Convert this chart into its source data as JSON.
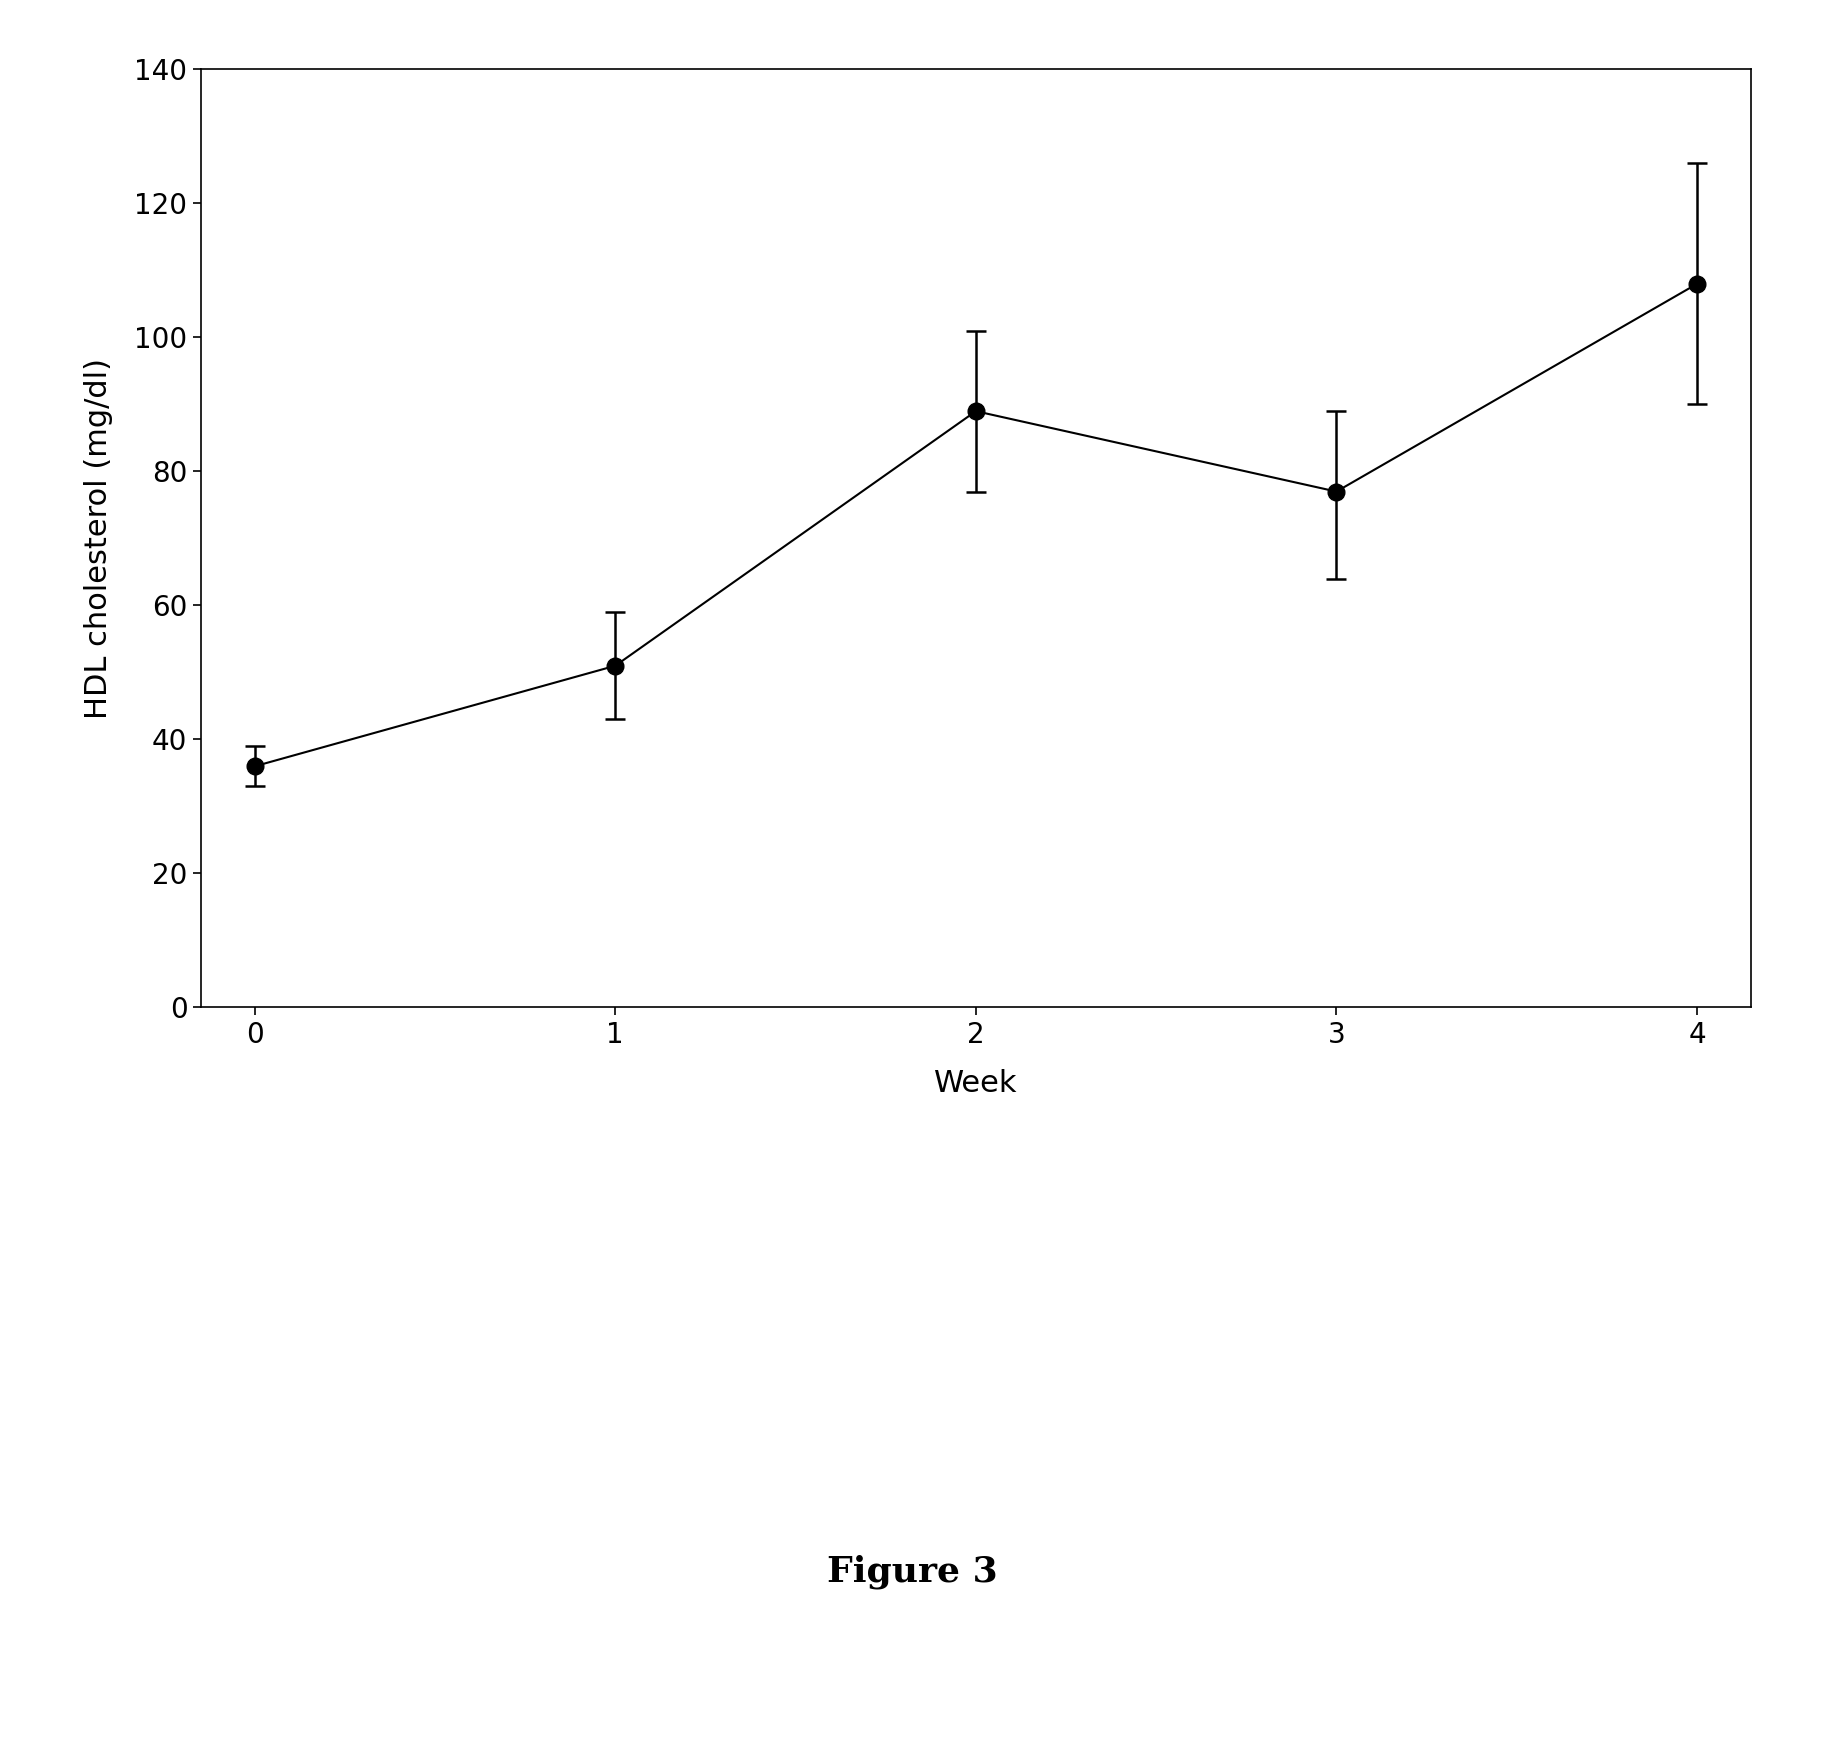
{
  "x": [
    0,
    1,
    2,
    3,
    4
  ],
  "y": [
    36,
    51,
    89,
    77,
    108
  ],
  "yerr_lower": [
    3,
    8,
    12,
    13,
    18
  ],
  "yerr_upper": [
    3,
    8,
    12,
    12,
    18
  ],
  "xlabel": "Week",
  "ylabel": "HDL cholesterol (mg/dl)",
  "xlim": [
    -0.15,
    4.15
  ],
  "ylim": [
    0,
    140
  ],
  "yticks": [
    0,
    20,
    40,
    60,
    80,
    100,
    120,
    140
  ],
  "xticks": [
    0,
    1,
    2,
    3,
    4
  ],
  "figure_label": "Figure 3",
  "marker_color": "black",
  "line_color": "black",
  "marker_size": 12,
  "line_width": 1.5,
  "background_color": "#ffffff",
  "axis_label_fontsize": 22,
  "tick_fontsize": 20,
  "figure_label_fontsize": 26
}
